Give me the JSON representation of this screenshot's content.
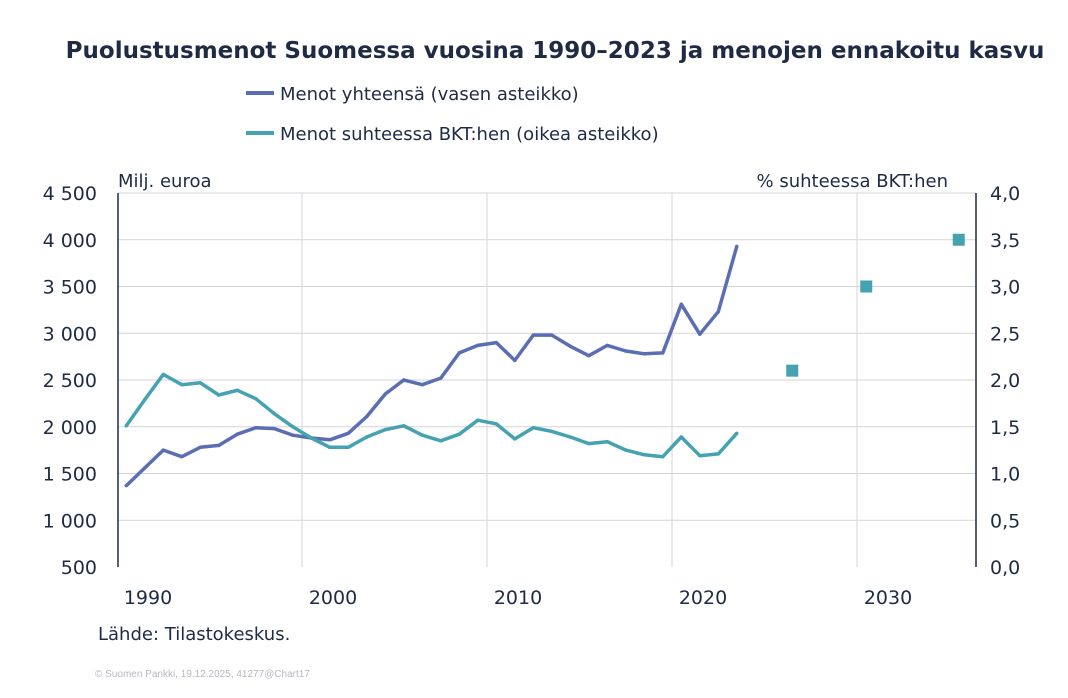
{
  "chart_data": {
    "type": "line",
    "title": "Puolustusmenot Suomessa vuosina 1990–2023 ja menojen ennakoitu kasvu",
    "ylabel_left": "Milj. euroa",
    "ylabel_right": "% suhteessa BKT:hen",
    "source": "Lähde: Tilastokeskus.",
    "footer": "© Suomen Pankki, 19.12.2025, 41277@Chart17",
    "x_ticks": [
      "1990",
      "2000",
      "2010",
      "2020",
      "2030"
    ],
    "y_left_ticks": [
      "500",
      "1 000",
      "1 500",
      "2 000",
      "2 500",
      "3 000",
      "3 500",
      "4 000",
      "4 500"
    ],
    "y_right_ticks": [
      "0,0",
      "0,5",
      "1,0",
      "1,5",
      "2,0",
      "2,5",
      "3,0",
      "3,5",
      "4,0"
    ],
    "ylim_left": [
      500,
      4500
    ],
    "ylim_right": [
      0,
      4
    ],
    "grid": true,
    "legend_position": "top",
    "x": [
      1990,
      1991,
      1992,
      1993,
      1994,
      1995,
      1996,
      1997,
      1998,
      1999,
      2000,
      2001,
      2002,
      2003,
      2004,
      2005,
      2006,
      2007,
      2008,
      2009,
      2010,
      2011,
      2012,
      2013,
      2014,
      2015,
      2016,
      2017,
      2018,
      2019,
      2020,
      2021,
      2022,
      2023
    ],
    "series": [
      {
        "name": "Menot yhteensä (vasen asteikko)",
        "axis": "left",
        "color": "#5b6db3",
        "values": [
          1370,
          1560,
          1750,
          1680,
          1780,
          1800,
          1920,
          1990,
          1980,
          1910,
          1880,
          1860,
          1930,
          2110,
          2350,
          2500,
          2450,
          2520,
          2790,
          2870,
          2900,
          2710,
          2980,
          2980,
          2860,
          2760,
          2870,
          2810,
          2780,
          2790,
          3310,
          2990,
          3230,
          3930
        ]
      },
      {
        "name": "Menot suhteessa BKT:hen (oikea asteikko)",
        "axis": "right",
        "color": "#45a2b0",
        "values": [
          1.51,
          1.79,
          2.06,
          1.95,
          1.97,
          1.84,
          1.89,
          1.8,
          1.64,
          1.5,
          1.38,
          1.28,
          1.28,
          1.39,
          1.47,
          1.51,
          1.41,
          1.35,
          1.42,
          1.57,
          1.53,
          1.37,
          1.49,
          1.45,
          1.39,
          1.32,
          1.34,
          1.25,
          1.2,
          1.18,
          1.39,
          1.19,
          1.21,
          1.43
        ]
      }
    ],
    "projection_points": {
      "axis": "right",
      "color": "#45a2b0",
      "points": [
        {
          "x": 2026,
          "y": 2.1
        },
        {
          "x": 2030,
          "y": 3.0
        },
        {
          "x": 2035,
          "y": 3.5
        }
      ]
    }
  }
}
